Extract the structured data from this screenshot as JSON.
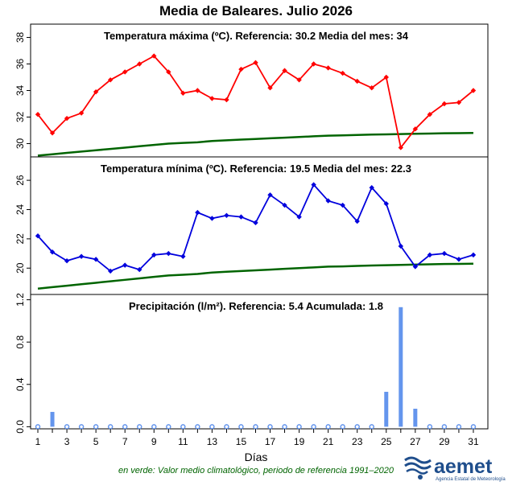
{
  "title": "Media de Baleares.  Julio 2026",
  "xlabel": "Días",
  "footnote": "en verde: Valor medio climatológico, periodo de referencia 1991–2020",
  "logo": {
    "name": "aemet",
    "subtitle": "Agencia Estatal de Meteorología"
  },
  "colors": {
    "tmax": "#ff0000",
    "tmin": "#0000dd",
    "ref": "#006400",
    "precip": "#6495ed"
  },
  "x_ticks": [
    1,
    3,
    5,
    7,
    9,
    11,
    13,
    15,
    17,
    19,
    21,
    23,
    25,
    27,
    29,
    31
  ],
  "panels": {
    "tmax": {
      "title": "Temperatura máxima (ºC). Referencia:  30.2   Media del mes:  34"
    },
    "tmin": {
      "title": "Temperatura mínima (ºC).  Referencia:  19.5   Media del mes:  22.3"
    },
    "precip": {
      "title": "Precipitación (l/m²).  Referencia:  5.4   Acumulada:  1.8"
    }
  },
  "chart_data": [
    {
      "type": "line",
      "title": "Temperatura máxima (ºC). Referencia:  30.2   Media del mes:  34",
      "x": [
        1,
        2,
        3,
        4,
        5,
        6,
        7,
        8,
        9,
        10,
        11,
        12,
        13,
        14,
        15,
        16,
        17,
        18,
        19,
        20,
        21,
        22,
        23,
        24,
        25,
        26,
        27,
        28,
        29,
        30,
        31
      ],
      "series": [
        {
          "values": [
            32.2,
            30.8,
            31.9,
            32.3,
            33.9,
            34.8,
            35.4,
            36.0,
            36.6,
            35.4,
            33.8,
            34.0,
            33.4,
            33.3,
            35.6,
            36.1,
            34.2,
            35.5,
            34.8,
            36.0,
            35.7,
            35.3,
            34.7,
            34.2,
            35.0,
            29.7,
            31.1,
            32.2,
            33.0,
            33.1,
            34.0
          ]
        },
        {
          "values": [
            29.1,
            29.2,
            29.3,
            29.4,
            29.5,
            29.6,
            29.7,
            29.8,
            29.9,
            30.0,
            30.05,
            30.1,
            30.2,
            30.25,
            30.3,
            30.35,
            30.4,
            30.45,
            30.5,
            30.55,
            30.6,
            30.62,
            30.65,
            30.68,
            30.7,
            30.72,
            30.74,
            30.76,
            30.78,
            30.79,
            30.8
          ]
        }
      ],
      "yticks": [
        30,
        32,
        34,
        36,
        38
      ],
      "ylim": [
        29,
        39
      ],
      "xlim": [
        0.5,
        32
      ]
    },
    {
      "type": "line",
      "title": "Temperatura mínima (ºC).  Referencia:  19.5   Media del mes:  22.3",
      "x": [
        1,
        2,
        3,
        4,
        5,
        6,
        7,
        8,
        9,
        10,
        11,
        12,
        13,
        14,
        15,
        16,
        17,
        18,
        19,
        20,
        21,
        22,
        23,
        24,
        25,
        26,
        27,
        28,
        29,
        30,
        31
      ],
      "series": [
        {
          "values": [
            22.2,
            21.1,
            20.5,
            20.8,
            20.6,
            19.8,
            20.2,
            19.9,
            20.9,
            21.0,
            20.8,
            23.8,
            23.4,
            23.6,
            23.5,
            23.1,
            25.0,
            24.3,
            23.5,
            25.7,
            24.6,
            24.3,
            23.2,
            25.5,
            24.4,
            21.5,
            20.1,
            20.9,
            21.0,
            20.6,
            20.9
          ]
        },
        {
          "values": [
            18.6,
            18.7,
            18.8,
            18.9,
            19.0,
            19.1,
            19.2,
            19.3,
            19.4,
            19.5,
            19.55,
            19.6,
            19.7,
            19.75,
            19.8,
            19.85,
            19.9,
            19.95,
            20.0,
            20.05,
            20.1,
            20.12,
            20.15,
            20.18,
            20.2,
            20.22,
            20.24,
            20.26,
            20.28,
            20.29,
            20.3
          ]
        }
      ],
      "yticks": [
        20,
        22,
        24,
        26
      ],
      "ylim": [
        18.2,
        27.6
      ],
      "xlim": [
        0.5,
        32
      ]
    },
    {
      "type": "bar",
      "title": "Precipitación (l/m²).  Referencia:  5.4   Acumulada:  1.8",
      "x": [
        1,
        2,
        3,
        4,
        5,
        6,
        7,
        8,
        9,
        10,
        11,
        12,
        13,
        14,
        15,
        16,
        17,
        18,
        19,
        20,
        21,
        22,
        23,
        24,
        25,
        26,
        27,
        28,
        29,
        30,
        31
      ],
      "values": [
        0,
        0.14,
        0,
        0,
        0,
        0,
        0,
        0,
        0,
        0,
        0,
        0,
        0,
        0,
        0,
        0,
        0,
        0,
        0,
        0,
        0,
        0,
        0,
        0,
        0.33,
        1.13,
        0.17,
        0,
        0,
        0,
        0
      ],
      "yticks": [
        0.0,
        0.4,
        0.8,
        1.2
      ],
      "ylim": [
        -0.02,
        1.25
      ],
      "xlim": [
        0.5,
        32
      ]
    }
  ]
}
